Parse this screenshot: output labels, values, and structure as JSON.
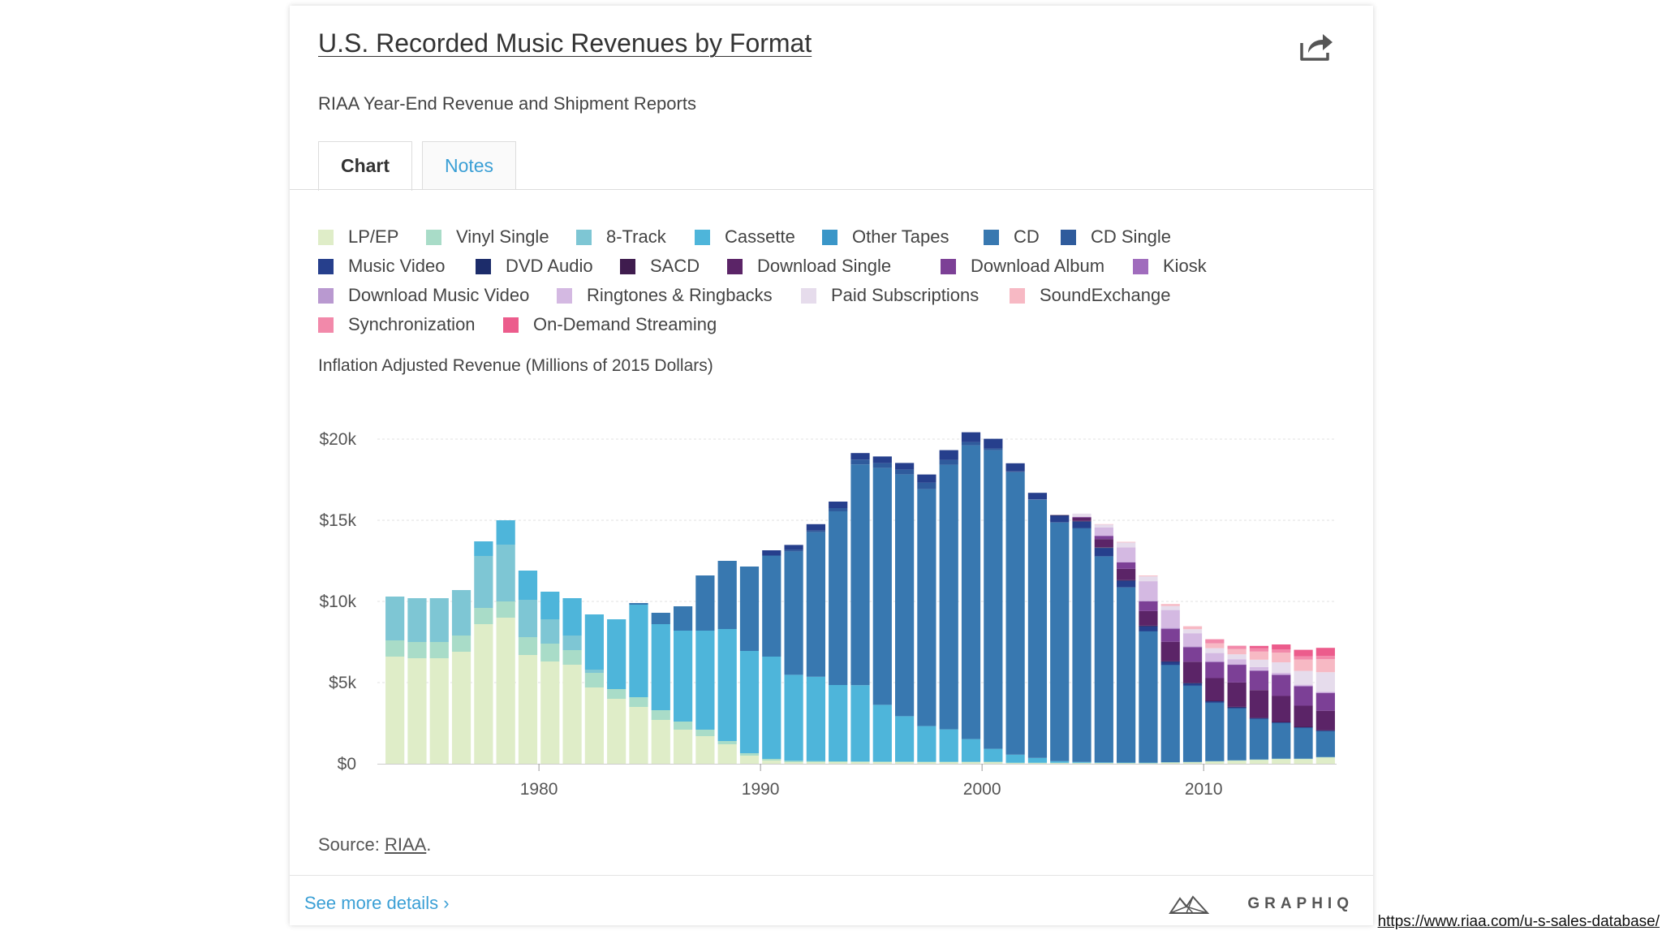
{
  "header": {
    "title": "U.S. Recorded Music Revenues by Format",
    "subtitle": "RIAA Year-End Revenue and Shipment Reports"
  },
  "tabs": [
    {
      "label": "Chart",
      "active": true
    },
    {
      "label": "Notes",
      "active": false
    }
  ],
  "legend": [
    {
      "label": "LP/EP",
      "color": "#dfedc8"
    },
    {
      "label": "Vinyl Single",
      "color": "#a9dcc8"
    },
    {
      "label": "8-Track",
      "color": "#7ec6d4"
    },
    {
      "label": "Cassette",
      "color": "#4eb5da"
    },
    {
      "label": "Other Tapes",
      "color": "#3a96c8"
    },
    {
      "label": "CD",
      "color": "#3878b0"
    },
    {
      "label": "CD Single",
      "color": "#2f5b9c"
    },
    {
      "label": "Music Video",
      "color": "#263f8c"
    },
    {
      "label": "DVD Audio",
      "color": "#1c2c6a"
    },
    {
      "label": "SACD",
      "color": "#3f1c4e"
    },
    {
      "label": "Download Single",
      "color": "#5b2467"
    },
    {
      "label": "Download Album",
      "color": "#7c4096"
    },
    {
      "label": "Kiosk",
      "color": "#a06cbd"
    },
    {
      "label": "Download Music Video",
      "color": "#b999d0"
    },
    {
      "label": "Ringtones & Ringbacks",
      "color": "#d4b9e2"
    },
    {
      "label": "Paid Subscriptions",
      "color": "#e6dcec"
    },
    {
      "label": "SoundExchange",
      "color": "#f7b9c4"
    },
    {
      "label": "Synchronization",
      "color": "#f289aa"
    },
    {
      "label": "On-Demand Streaming",
      "color": "#ec5c8c"
    }
  ],
  "y_axis_label": "Inflation Adjusted Revenue (Millions of 2015 Dollars)",
  "source": {
    "prefix": "Source: ",
    "link": "RIAA",
    "suffix": "."
  },
  "footer": {
    "more_link": "See more details ›",
    "brand": "GRAPHIQ"
  },
  "url_caption": "https://www.riaa.com/u-s-sales-database/",
  "chart_data": {
    "type": "bar",
    "stacked": true,
    "title": "U.S. Recorded Music Revenues by Format",
    "subtitle": "RIAA Year-End Revenue and Shipment Reports",
    "ylabel": "Inflation Adjusted Revenue (Millions of 2015 Dollars)",
    "xlabel": "",
    "ylim": [
      0,
      20000
    ],
    "yticks": [
      0,
      5000,
      10000,
      15000,
      20000
    ],
    "ytick_labels": [
      "$0",
      "$5k",
      "$10k",
      "$15k",
      "$20k"
    ],
    "xticks": [
      1980,
      1990,
      2000,
      2010
    ],
    "xtick_labels": [
      "1980",
      "1990",
      "2000",
      "2010"
    ],
    "grid": true,
    "legend_position": "top",
    "x": [
      1973,
      1974,
      1975,
      1976,
      1977,
      1978,
      1979,
      1980,
      1981,
      1982,
      1983,
      1984,
      1985,
      1986,
      1987,
      1988,
      1989,
      1990,
      1991,
      1992,
      1993,
      1994,
      1995,
      1996,
      1997,
      1998,
      1999,
      2000,
      2001,
      2002,
      2003,
      2004,
      2005,
      2006,
      2007,
      2008,
      2009,
      2010,
      2011,
      2012,
      2013,
      2014,
      2015
    ],
    "series": [
      {
        "name": "LP/EP",
        "values": [
          6600,
          6500,
          6500,
          6900,
          8600,
          9000,
          6700,
          6300,
          6100,
          4700,
          4000,
          3500,
          2700,
          2100,
          1700,
          1200,
          500,
          200,
          100,
          100,
          100,
          100,
          100,
          100,
          100,
          100,
          100,
          100,
          50,
          50,
          50,
          50,
          50,
          50,
          50,
          80,
          100,
          150,
          200,
          250,
          300,
          300,
          400
        ]
      },
      {
        "name": "Vinyl Single",
        "values": [
          1000,
          1000,
          1000,
          1000,
          1000,
          1000,
          1100,
          1100,
          900,
          900,
          600,
          600,
          600,
          500,
          400,
          200,
          150,
          100,
          80,
          60,
          50,
          40,
          30,
          30,
          20,
          20,
          20,
          20,
          10,
          10,
          10,
          10,
          10,
          10,
          10,
          10,
          10,
          10,
          10,
          10,
          10,
          10,
          10
        ]
      },
      {
        "name": "8-Track",
        "values": [
          2700,
          2700,
          2700,
          2800,
          3200,
          3500,
          2300,
          1500,
          900,
          200,
          0,
          0,
          0,
          0,
          0,
          0,
          0,
          0,
          0,
          0,
          0,
          0,
          0,
          0,
          0,
          0,
          0,
          0,
          0,
          0,
          0,
          0,
          0,
          0,
          0,
          0,
          0,
          0,
          0,
          0,
          0,
          0,
          0
        ]
      },
      {
        "name": "Cassette",
        "values": [
          0,
          0,
          0,
          0,
          900,
          1500,
          1800,
          1700,
          2300,
          3400,
          4300,
          5700,
          5300,
          5600,
          6100,
          6900,
          6300,
          6300,
          5300,
          5200,
          4700,
          4700,
          3500,
          2800,
          2200,
          2000,
          1400,
          800,
          500,
          300,
          100,
          50,
          20,
          10,
          5,
          0,
          0,
          0,
          0,
          0,
          0,
          0,
          0
        ]
      },
      {
        "name": "Other Tapes",
        "values": [
          0,
          0,
          0,
          0,
          0,
          0,
          0,
          0,
          0,
          0,
          0,
          0,
          0,
          0,
          0,
          0,
          0,
          0,
          0,
          0,
          0,
          0,
          0,
          0,
          0,
          0,
          0,
          0,
          0,
          0,
          0,
          0,
          0,
          0,
          0,
          0,
          0,
          0,
          0,
          0,
          0,
          0,
          0
        ]
      },
      {
        "name": "CD",
        "values": [
          0,
          0,
          0,
          0,
          0,
          0,
          0,
          0,
          0,
          0,
          0,
          100,
          700,
          1500,
          3400,
          4200,
          5200,
          6200,
          7600,
          8900,
          10700,
          13600,
          14600,
          14900,
          14600,
          16300,
          18100,
          18400,
          17400,
          15900,
          14700,
          14400,
          12700,
          10800,
          8100,
          6000,
          4700,
          3600,
          3200,
          2500,
          2200,
          1900,
          1600
        ]
      },
      {
        "name": "CD Single",
        "values": [
          0,
          0,
          0,
          0,
          0,
          0,
          0,
          0,
          0,
          0,
          0,
          0,
          0,
          0,
          0,
          0,
          0,
          50,
          100,
          100,
          200,
          300,
          300,
          300,
          400,
          300,
          200,
          100,
          50,
          30,
          20,
          10,
          10,
          10,
          10,
          10,
          10,
          10,
          10,
          10,
          10,
          10,
          10
        ]
      },
      {
        "name": "Music Video",
        "values": [
          0,
          0,
          0,
          0,
          0,
          0,
          0,
          0,
          0,
          0,
          0,
          0,
          0,
          0,
          0,
          0,
          0,
          300,
          300,
          400,
          400,
          400,
          400,
          400,
          500,
          600,
          600,
          600,
          500,
          400,
          400,
          400,
          500,
          400,
          300,
          200,
          150,
          100,
          80,
          60,
          50,
          50,
          40
        ]
      },
      {
        "name": "DVD Audio",
        "values": [
          0,
          0,
          0,
          0,
          0,
          0,
          0,
          0,
          0,
          0,
          0,
          0,
          0,
          0,
          0,
          0,
          0,
          0,
          0,
          0,
          0,
          0,
          0,
          0,
          0,
          0,
          0,
          0,
          0,
          0,
          20,
          20,
          20,
          10,
          10,
          5,
          5,
          0,
          0,
          0,
          0,
          0,
          0
        ]
      },
      {
        "name": "SACD",
        "values": [
          0,
          0,
          0,
          0,
          0,
          0,
          0,
          0,
          0,
          0,
          0,
          0,
          0,
          0,
          0,
          0,
          0,
          0,
          0,
          0,
          0,
          0,
          0,
          0,
          0,
          0,
          0,
          0,
          0,
          0,
          20,
          20,
          30,
          20,
          20,
          10,
          10,
          5,
          5,
          5,
          5,
          5,
          5
        ]
      },
      {
        "name": "Download Single",
        "values": [
          0,
          0,
          0,
          0,
          0,
          0,
          0,
          0,
          0,
          0,
          0,
          0,
          0,
          0,
          0,
          0,
          0,
          0,
          0,
          0,
          0,
          0,
          0,
          0,
          0,
          0,
          0,
          0,
          0,
          0,
          0,
          200,
          500,
          700,
          900,
          1200,
          1300,
          1400,
          1500,
          1700,
          1600,
          1300,
          1200
        ]
      },
      {
        "name": "Download Album",
        "values": [
          0,
          0,
          0,
          0,
          0,
          0,
          0,
          0,
          0,
          0,
          0,
          0,
          0,
          0,
          0,
          0,
          0,
          0,
          0,
          0,
          0,
          0,
          0,
          0,
          0,
          0,
          0,
          0,
          0,
          0,
          0,
          50,
          200,
          400,
          600,
          800,
          900,
          1000,
          1100,
          1200,
          1300,
          1200,
          1100
        ]
      },
      {
        "name": "Kiosk",
        "values": [
          0,
          0,
          0,
          0,
          0,
          0,
          0,
          0,
          0,
          0,
          0,
          0,
          0,
          0,
          0,
          0,
          0,
          0,
          0,
          0,
          0,
          0,
          0,
          0,
          0,
          0,
          0,
          0,
          0,
          0,
          0,
          0,
          0,
          0,
          0,
          5,
          5,
          5,
          5,
          5,
          5,
          5,
          5
        ]
      },
      {
        "name": "Download Music Video",
        "values": [
          0,
          0,
          0,
          0,
          0,
          0,
          0,
          0,
          0,
          0,
          0,
          0,
          0,
          0,
          0,
          0,
          0,
          0,
          0,
          0,
          0,
          0,
          0,
          0,
          0,
          0,
          0,
          0,
          0,
          0,
          0,
          0,
          10,
          20,
          40,
          50,
          50,
          40,
          30,
          20,
          20,
          20,
          20
        ]
      },
      {
        "name": "Ringtones & Ringbacks",
        "values": [
          0,
          0,
          0,
          0,
          0,
          0,
          0,
          0,
          0,
          0,
          0,
          0,
          0,
          0,
          0,
          0,
          0,
          0,
          0,
          0,
          0,
          0,
          0,
          0,
          0,
          0,
          0,
          0,
          0,
          0,
          0,
          0,
          500,
          900,
          1200,
          1100,
          800,
          500,
          300,
          200,
          100,
          70,
          50
        ]
      },
      {
        "name": "Paid Subscriptions",
        "values": [
          0,
          0,
          0,
          0,
          0,
          0,
          0,
          0,
          0,
          0,
          0,
          0,
          0,
          0,
          0,
          0,
          0,
          0,
          0,
          0,
          0,
          0,
          0,
          0,
          0,
          0,
          0,
          0,
          0,
          0,
          0,
          200,
          200,
          300,
          300,
          250,
          250,
          300,
          300,
          450,
          650,
          850,
          1200
        ]
      },
      {
        "name": "SoundExchange",
        "values": [
          0,
          0,
          0,
          0,
          0,
          0,
          0,
          0,
          0,
          0,
          0,
          0,
          0,
          0,
          0,
          0,
          0,
          0,
          0,
          0,
          0,
          0,
          0,
          0,
          0,
          0,
          0,
          0,
          0,
          0,
          0,
          0,
          10,
          40,
          50,
          120,
          180,
          300,
          330,
          500,
          600,
          700,
          800
        ]
      },
      {
        "name": "Synchronization",
        "values": [
          0,
          0,
          0,
          0,
          0,
          0,
          0,
          0,
          0,
          0,
          0,
          0,
          0,
          0,
          0,
          0,
          0,
          0,
          0,
          0,
          0,
          0,
          0,
          0,
          0,
          0,
          0,
          0,
          0,
          0,
          0,
          0,
          0,
          0,
          0,
          0,
          0,
          250,
          200,
          200,
          200,
          200,
          200
        ]
      },
      {
        "name": "On-Demand Streaming",
        "values": [
          0,
          0,
          0,
          0,
          0,
          0,
          0,
          0,
          0,
          0,
          0,
          0,
          0,
          0,
          0,
          0,
          0,
          0,
          0,
          0,
          0,
          0,
          0,
          0,
          0,
          0,
          0,
          0,
          0,
          0,
          0,
          0,
          0,
          0,
          0,
          0,
          0,
          0,
          0,
          150,
          300,
          400,
          500
        ]
      }
    ]
  }
}
